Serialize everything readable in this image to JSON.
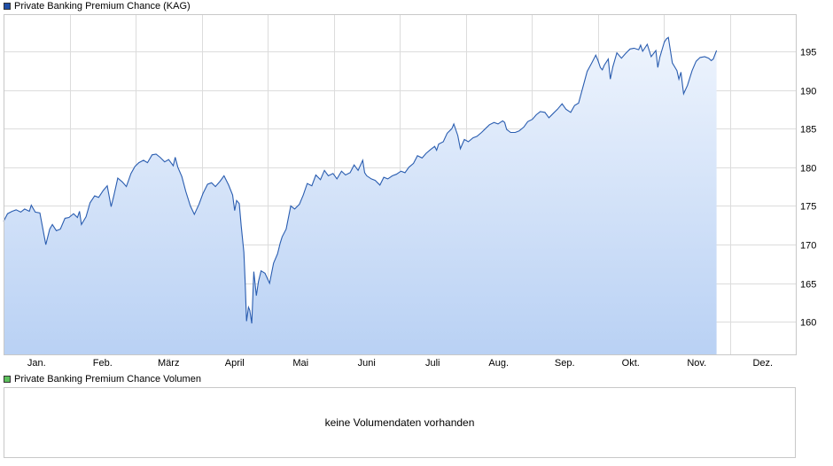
{
  "legend": {
    "price_label": "Private Banking Premium Chance (KAG)",
    "volume_label": "Private Banking Premium Chance Volumen"
  },
  "volume_panel": {
    "message": "keine Volumendaten vorhanden"
  },
  "colors": {
    "line": "#2a5db0",
    "fill_top": "#eef4fd",
    "fill_bottom": "#b9d1f4",
    "grid": "#dcdcdc",
    "price_swatch": "#1f4fa8",
    "volume_swatch": "#5cc05c"
  },
  "chart_data": {
    "type": "area",
    "title": "Private Banking Premium Chance (KAG)",
    "xlabel": "",
    "ylabel": "",
    "grid": true,
    "legend_position": "top-left",
    "y_axis_side": "right",
    "x_tick_labels": [
      "Jan.",
      "Feb.",
      "März",
      "April",
      "Mai",
      "Juni",
      "Juli",
      "Aug.",
      "Sep.",
      "Okt.",
      "Nov.",
      "Dez."
    ],
    "y_ticks": [
      160,
      165,
      170,
      175,
      180,
      185,
      190,
      195
    ],
    "x_range": [
      0,
      12
    ],
    "ylim": [
      155.8,
      199.8
    ],
    "series": [
      {
        "name": "Private Banking Premium Chance (KAG)",
        "points": [
          [
            0.0,
            173.0
          ],
          [
            0.06,
            174.0
          ],
          [
            0.13,
            174.3
          ],
          [
            0.19,
            174.5
          ],
          [
            0.26,
            174.2
          ],
          [
            0.32,
            174.6
          ],
          [
            0.39,
            174.3
          ],
          [
            0.42,
            175.1
          ],
          [
            0.48,
            174.2
          ],
          [
            0.55,
            174.1
          ],
          [
            0.64,
            170.0
          ],
          [
            0.7,
            172.0
          ],
          [
            0.74,
            172.6
          ],
          [
            0.8,
            171.8
          ],
          [
            0.86,
            172.0
          ],
          [
            0.93,
            173.4
          ],
          [
            0.99,
            173.5
          ],
          [
            1.06,
            174.0
          ],
          [
            1.12,
            173.5
          ],
          [
            1.15,
            174.3
          ],
          [
            1.18,
            172.6
          ],
          [
            1.25,
            173.6
          ],
          [
            1.31,
            175.4
          ],
          [
            1.38,
            176.3
          ],
          [
            1.44,
            176.1
          ],
          [
            1.51,
            177.0
          ],
          [
            1.57,
            177.6
          ],
          [
            1.63,
            174.9
          ],
          [
            1.67,
            176.3
          ],
          [
            1.73,
            178.6
          ],
          [
            1.8,
            178.1
          ],
          [
            1.86,
            177.5
          ],
          [
            1.93,
            179.2
          ],
          [
            1.99,
            180.1
          ],
          [
            2.05,
            180.6
          ],
          [
            2.12,
            180.9
          ],
          [
            2.18,
            180.6
          ],
          [
            2.25,
            181.6
          ],
          [
            2.31,
            181.7
          ],
          [
            2.37,
            181.3
          ],
          [
            2.44,
            180.7
          ],
          [
            2.5,
            181.0
          ],
          [
            2.57,
            180.2
          ],
          [
            2.6,
            181.3
          ],
          [
            2.64,
            180.0
          ],
          [
            2.7,
            178.8
          ],
          [
            2.76,
            176.9
          ],
          [
            2.83,
            175.0
          ],
          [
            2.89,
            173.9
          ],
          [
            2.96,
            175.2
          ],
          [
            3.02,
            176.6
          ],
          [
            3.09,
            177.8
          ],
          [
            3.15,
            178.0
          ],
          [
            3.21,
            177.5
          ],
          [
            3.28,
            178.2
          ],
          [
            3.34,
            178.9
          ],
          [
            3.41,
            177.7
          ],
          [
            3.47,
            176.4
          ],
          [
            3.5,
            174.4
          ],
          [
            3.53,
            175.7
          ],
          [
            3.57,
            175.3
          ],
          [
            3.6,
            172.4
          ],
          [
            3.64,
            169.0
          ],
          [
            3.66,
            165.0
          ],
          [
            3.68,
            160.1
          ],
          [
            3.71,
            161.9
          ],
          [
            3.73,
            161.5
          ],
          [
            3.76,
            159.8
          ],
          [
            3.79,
            166.5
          ],
          [
            3.83,
            163.4
          ],
          [
            3.86,
            165.2
          ],
          [
            3.9,
            166.6
          ],
          [
            3.96,
            166.3
          ],
          [
            4.03,
            165.0
          ],
          [
            4.09,
            167.6
          ],
          [
            4.15,
            168.8
          ],
          [
            4.19,
            170.2
          ],
          [
            4.22,
            171.0
          ],
          [
            4.28,
            172.0
          ],
          [
            4.35,
            175.0
          ],
          [
            4.41,
            174.6
          ],
          [
            4.48,
            175.2
          ],
          [
            4.54,
            176.4
          ],
          [
            4.6,
            177.9
          ],
          [
            4.67,
            177.6
          ],
          [
            4.73,
            179.0
          ],
          [
            4.8,
            178.4
          ],
          [
            4.86,
            179.6
          ],
          [
            4.92,
            178.9
          ],
          [
            4.99,
            179.2
          ],
          [
            5.05,
            178.5
          ],
          [
            5.12,
            179.5
          ],
          [
            5.18,
            179.0
          ],
          [
            5.25,
            179.3
          ],
          [
            5.31,
            180.3
          ],
          [
            5.37,
            179.6
          ],
          [
            5.44,
            180.9
          ],
          [
            5.47,
            179.3
          ],
          [
            5.5,
            178.9
          ],
          [
            5.57,
            178.5
          ],
          [
            5.63,
            178.3
          ],
          [
            5.7,
            177.7
          ],
          [
            5.76,
            178.7
          ],
          [
            5.82,
            178.5
          ],
          [
            5.89,
            178.9
          ],
          [
            5.95,
            179.1
          ],
          [
            6.02,
            179.5
          ],
          [
            6.08,
            179.3
          ],
          [
            6.14,
            180.0
          ],
          [
            6.21,
            180.5
          ],
          [
            6.27,
            181.5
          ],
          [
            6.34,
            181.2
          ],
          [
            6.4,
            181.8
          ],
          [
            6.47,
            182.3
          ],
          [
            6.53,
            182.7
          ],
          [
            6.56,
            182.2
          ],
          [
            6.59,
            183.0
          ],
          [
            6.66,
            183.3
          ],
          [
            6.72,
            184.4
          ],
          [
            6.79,
            185.0
          ],
          [
            6.82,
            185.6
          ],
          [
            6.88,
            184.1
          ],
          [
            6.92,
            182.4
          ],
          [
            6.98,
            183.6
          ],
          [
            7.04,
            183.3
          ],
          [
            7.11,
            183.8
          ],
          [
            7.17,
            184.0
          ],
          [
            7.24,
            184.5
          ],
          [
            7.3,
            185.0
          ],
          [
            7.36,
            185.5
          ],
          [
            7.43,
            185.8
          ],
          [
            7.49,
            185.6
          ],
          [
            7.56,
            186.0
          ],
          [
            7.59,
            185.8
          ],
          [
            7.62,
            184.9
          ],
          [
            7.68,
            184.5
          ],
          [
            7.75,
            184.5
          ],
          [
            7.81,
            184.7
          ],
          [
            7.88,
            185.2
          ],
          [
            7.94,
            185.9
          ],
          [
            8.01,
            186.2
          ],
          [
            8.07,
            186.8
          ],
          [
            8.13,
            187.2
          ],
          [
            8.2,
            187.1
          ],
          [
            8.26,
            186.4
          ],
          [
            8.33,
            187.0
          ],
          [
            8.39,
            187.5
          ],
          [
            8.46,
            188.2
          ],
          [
            8.52,
            187.5
          ],
          [
            8.59,
            187.1
          ],
          [
            8.65,
            188.0
          ],
          [
            8.71,
            188.3
          ],
          [
            8.78,
            190.5
          ],
          [
            8.84,
            192.4
          ],
          [
            8.91,
            193.5
          ],
          [
            8.97,
            194.5
          ],
          [
            9.0,
            193.9
          ],
          [
            9.04,
            192.9
          ],
          [
            9.07,
            192.6
          ],
          [
            9.1,
            193.2
          ],
          [
            9.16,
            194.0
          ],
          [
            9.19,
            191.4
          ],
          [
            9.23,
            193.0
          ],
          [
            9.29,
            194.8
          ],
          [
            9.36,
            194.1
          ],
          [
            9.42,
            194.7
          ],
          [
            9.49,
            195.3
          ],
          [
            9.55,
            195.4
          ],
          [
            9.62,
            195.2
          ],
          [
            9.65,
            195.8
          ],
          [
            9.68,
            195.0
          ],
          [
            9.75,
            195.9
          ],
          [
            9.81,
            194.3
          ],
          [
            9.88,
            195.1
          ],
          [
            9.91,
            192.9
          ],
          [
            9.94,
            194.2
          ],
          [
            10.01,
            196.2
          ],
          [
            10.04,
            196.6
          ],
          [
            10.07,
            196.8
          ],
          [
            10.13,
            193.5
          ],
          [
            10.2,
            192.5
          ],
          [
            10.23,
            191.4
          ],
          [
            10.26,
            192.3
          ],
          [
            10.3,
            189.5
          ],
          [
            10.36,
            190.6
          ],
          [
            10.43,
            192.5
          ],
          [
            10.49,
            193.7
          ],
          [
            10.55,
            194.2
          ],
          [
            10.62,
            194.3
          ],
          [
            10.68,
            194.1
          ],
          [
            10.72,
            193.8
          ],
          [
            10.75,
            194.0
          ],
          [
            10.8,
            195.1
          ]
        ]
      }
    ]
  }
}
